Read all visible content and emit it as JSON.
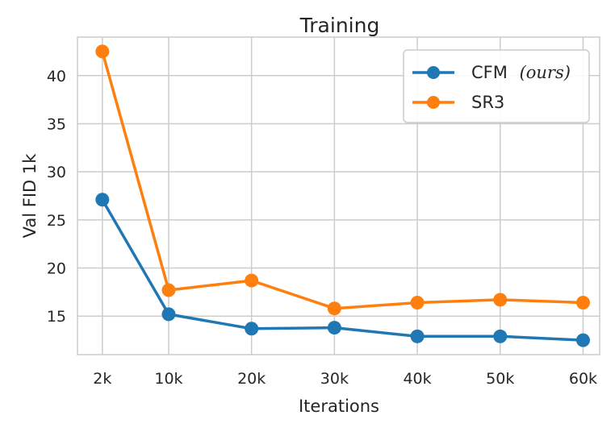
{
  "chart_data": {
    "type": "line",
    "title": "Training",
    "xlabel": "Iterations",
    "ylabel": "Val FID 1k",
    "categories": [
      "2k",
      "10k",
      "20k",
      "30k",
      "40k",
      "50k",
      "60k"
    ],
    "x": [
      2,
      10,
      20,
      30,
      40,
      50,
      60
    ],
    "xlim": [
      -1,
      62
    ],
    "ylim": [
      11,
      44
    ],
    "yticks": [
      15,
      20,
      25,
      30,
      35,
      40
    ],
    "grid": true,
    "legend_position": "top-right",
    "series": [
      {
        "name": "CFM",
        "name_suffix": "(ours)",
        "color": "#1f77b4",
        "marker": "circle",
        "values": [
          27.1,
          15.2,
          13.7,
          13.8,
          12.9,
          12.9,
          12.5
        ]
      },
      {
        "name": "SR3",
        "color": "#ff7f0e",
        "marker": "circle",
        "values": [
          42.5,
          17.7,
          18.7,
          15.8,
          16.4,
          16.7,
          16.4
        ]
      }
    ]
  }
}
